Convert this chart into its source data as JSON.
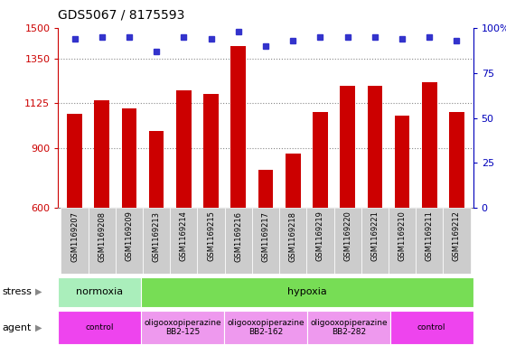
{
  "title": "GDS5067 / 8175593",
  "samples": [
    "GSM1169207",
    "GSM1169208",
    "GSM1169209",
    "GSM1169213",
    "GSM1169214",
    "GSM1169215",
    "GSM1169216",
    "GSM1169217",
    "GSM1169218",
    "GSM1169219",
    "GSM1169220",
    "GSM1169221",
    "GSM1169210",
    "GSM1169211",
    "GSM1169212"
  ],
  "counts": [
    1070,
    1140,
    1100,
    985,
    1190,
    1170,
    1410,
    790,
    870,
    1080,
    1210,
    1210,
    1060,
    1230,
    1080
  ],
  "percentiles": [
    94,
    95,
    95,
    87,
    95,
    94,
    98,
    90,
    93,
    95,
    95,
    95,
    94,
    95,
    93
  ],
  "ylim_left": [
    600,
    1500
  ],
  "ylim_right": [
    0,
    100
  ],
  "yticks_left": [
    600,
    900,
    1125,
    1350,
    1500
  ],
  "yticks_right": [
    0,
    25,
    50,
    75,
    100
  ],
  "ytick_right_labels": [
    "0",
    "25",
    "50",
    "75",
    "100%"
  ],
  "bar_color": "#cc0000",
  "dot_color": "#3333cc",
  "grid_yticks": [
    900,
    1125,
    1350
  ],
  "stress_row": [
    {
      "label": "normoxia",
      "start": 0,
      "end": 3,
      "color": "#aaeebb"
    },
    {
      "label": "hypoxia",
      "start": 3,
      "end": 15,
      "color": "#77dd55"
    }
  ],
  "agent_row": [
    {
      "label": "control",
      "start": 0,
      "end": 3,
      "color": "#ee44ee"
    },
    {
      "label": "oligooxopiperazine\nBB2-125",
      "start": 3,
      "end": 6,
      "color": "#ee99ee"
    },
    {
      "label": "oligooxopiperazine\nBB2-162",
      "start": 6,
      "end": 9,
      "color": "#ee99ee"
    },
    {
      "label": "oligooxopiperazine\nBB2-282",
      "start": 9,
      "end": 12,
      "color": "#ee99ee"
    },
    {
      "label": "control",
      "start": 12,
      "end": 15,
      "color": "#ee44ee"
    }
  ],
  "left_axis_color": "#cc0000",
  "right_axis_color": "#0000bb",
  "bg_color": "#ffffff",
  "xticklabel_bg": "#cccccc"
}
